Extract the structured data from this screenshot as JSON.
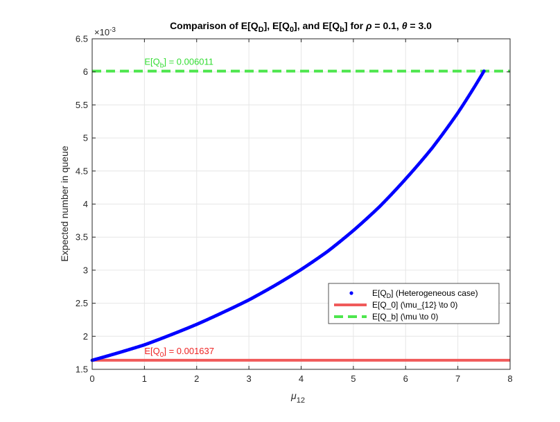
{
  "chart_data": {
    "type": "line",
    "title": {
      "prefix": "Comparison of E[Q",
      "sub_d": "D",
      "mid1": "], E[Q",
      "sub_0": "0",
      "mid2": "], and E[Q",
      "sub_b": "b",
      "mid3": "] for ",
      "rho_symbol": "ρ",
      "rho_text": " = 0.1, ",
      "theta_symbol": "θ",
      "theta_text": " = 3.0"
    },
    "xlabel": {
      "symbol": "μ",
      "subscript": "12"
    },
    "ylabel": "Expected number in queue",
    "y_exponent": {
      "base": "×10",
      "power": "-3"
    },
    "xlim": [
      0,
      8
    ],
    "ylim": [
      0.0015,
      0.0065
    ],
    "grid": true,
    "x_ticks": [
      {
        "value": 0,
        "label": "0"
      },
      {
        "value": 1,
        "label": "1"
      },
      {
        "value": 2,
        "label": "2"
      },
      {
        "value": 3,
        "label": "3"
      },
      {
        "value": 4,
        "label": "4"
      },
      {
        "value": 5,
        "label": "5"
      },
      {
        "value": 6,
        "label": "6"
      },
      {
        "value": 7,
        "label": "7"
      },
      {
        "value": 8,
        "label": "8"
      }
    ],
    "y_ticks": [
      {
        "value": 0.0015,
        "label": "1.5"
      },
      {
        "value": 0.002,
        "label": "2"
      },
      {
        "value": 0.0025,
        "label": "2.5"
      },
      {
        "value": 0.003,
        "label": "3"
      },
      {
        "value": 0.0035,
        "label": "3.5"
      },
      {
        "value": 0.004,
        "label": "4"
      },
      {
        "value": 0.0045,
        "label": "4.5"
      },
      {
        "value": 0.005,
        "label": "5"
      },
      {
        "value": 0.0055,
        "label": "5.5"
      },
      {
        "value": 0.006,
        "label": "6"
      },
      {
        "value": 0.0065,
        "label": "6.5"
      }
    ],
    "series": [
      {
        "name": "E[Q_D] (Heterogeneous case)",
        "legend_parts": {
          "pre": "E[Q",
          "sub": "D",
          "post": "] (Heterogeneous case)"
        },
        "style": "dots",
        "color": "#0000ff",
        "x": [
          0,
          0.5,
          1,
          1.5,
          2,
          2.5,
          3,
          3.5,
          4,
          4.5,
          5,
          5.5,
          6,
          6.5,
          7,
          7.5
        ],
        "y": [
          0.001637,
          0.00175,
          0.00187,
          0.00202,
          0.00218,
          0.00236,
          0.00255,
          0.00277,
          0.00301,
          0.00328,
          0.0036,
          0.00396,
          0.00438,
          0.00484,
          0.00538,
          0.006011
        ]
      },
      {
        "name": "E[Q_0] (\\mu_{12} \\to 0)",
        "style": "solid",
        "color": "#f05a5a",
        "x": [
          0,
          8
        ],
        "y": [
          0.001637,
          0.001637
        ]
      },
      {
        "name": "E[Q_b] (\\mu \\to 0)",
        "style": "dashed",
        "color": "#4de64d",
        "x": [
          0,
          8
        ],
        "y": [
          0.006011,
          0.006011
        ]
      }
    ],
    "annotations": [
      {
        "pre": "E[Q",
        "sub": "b",
        "post": "] = 0.006011",
        "x": 1,
        "y": 0.006011,
        "color": "#33dd33"
      },
      {
        "pre": "E[Q",
        "sub": "0",
        "post": "] = 0.001637",
        "x": 1,
        "y": 0.001637,
        "color": "#ee2222"
      }
    ],
    "legend_position": "lower-right"
  }
}
